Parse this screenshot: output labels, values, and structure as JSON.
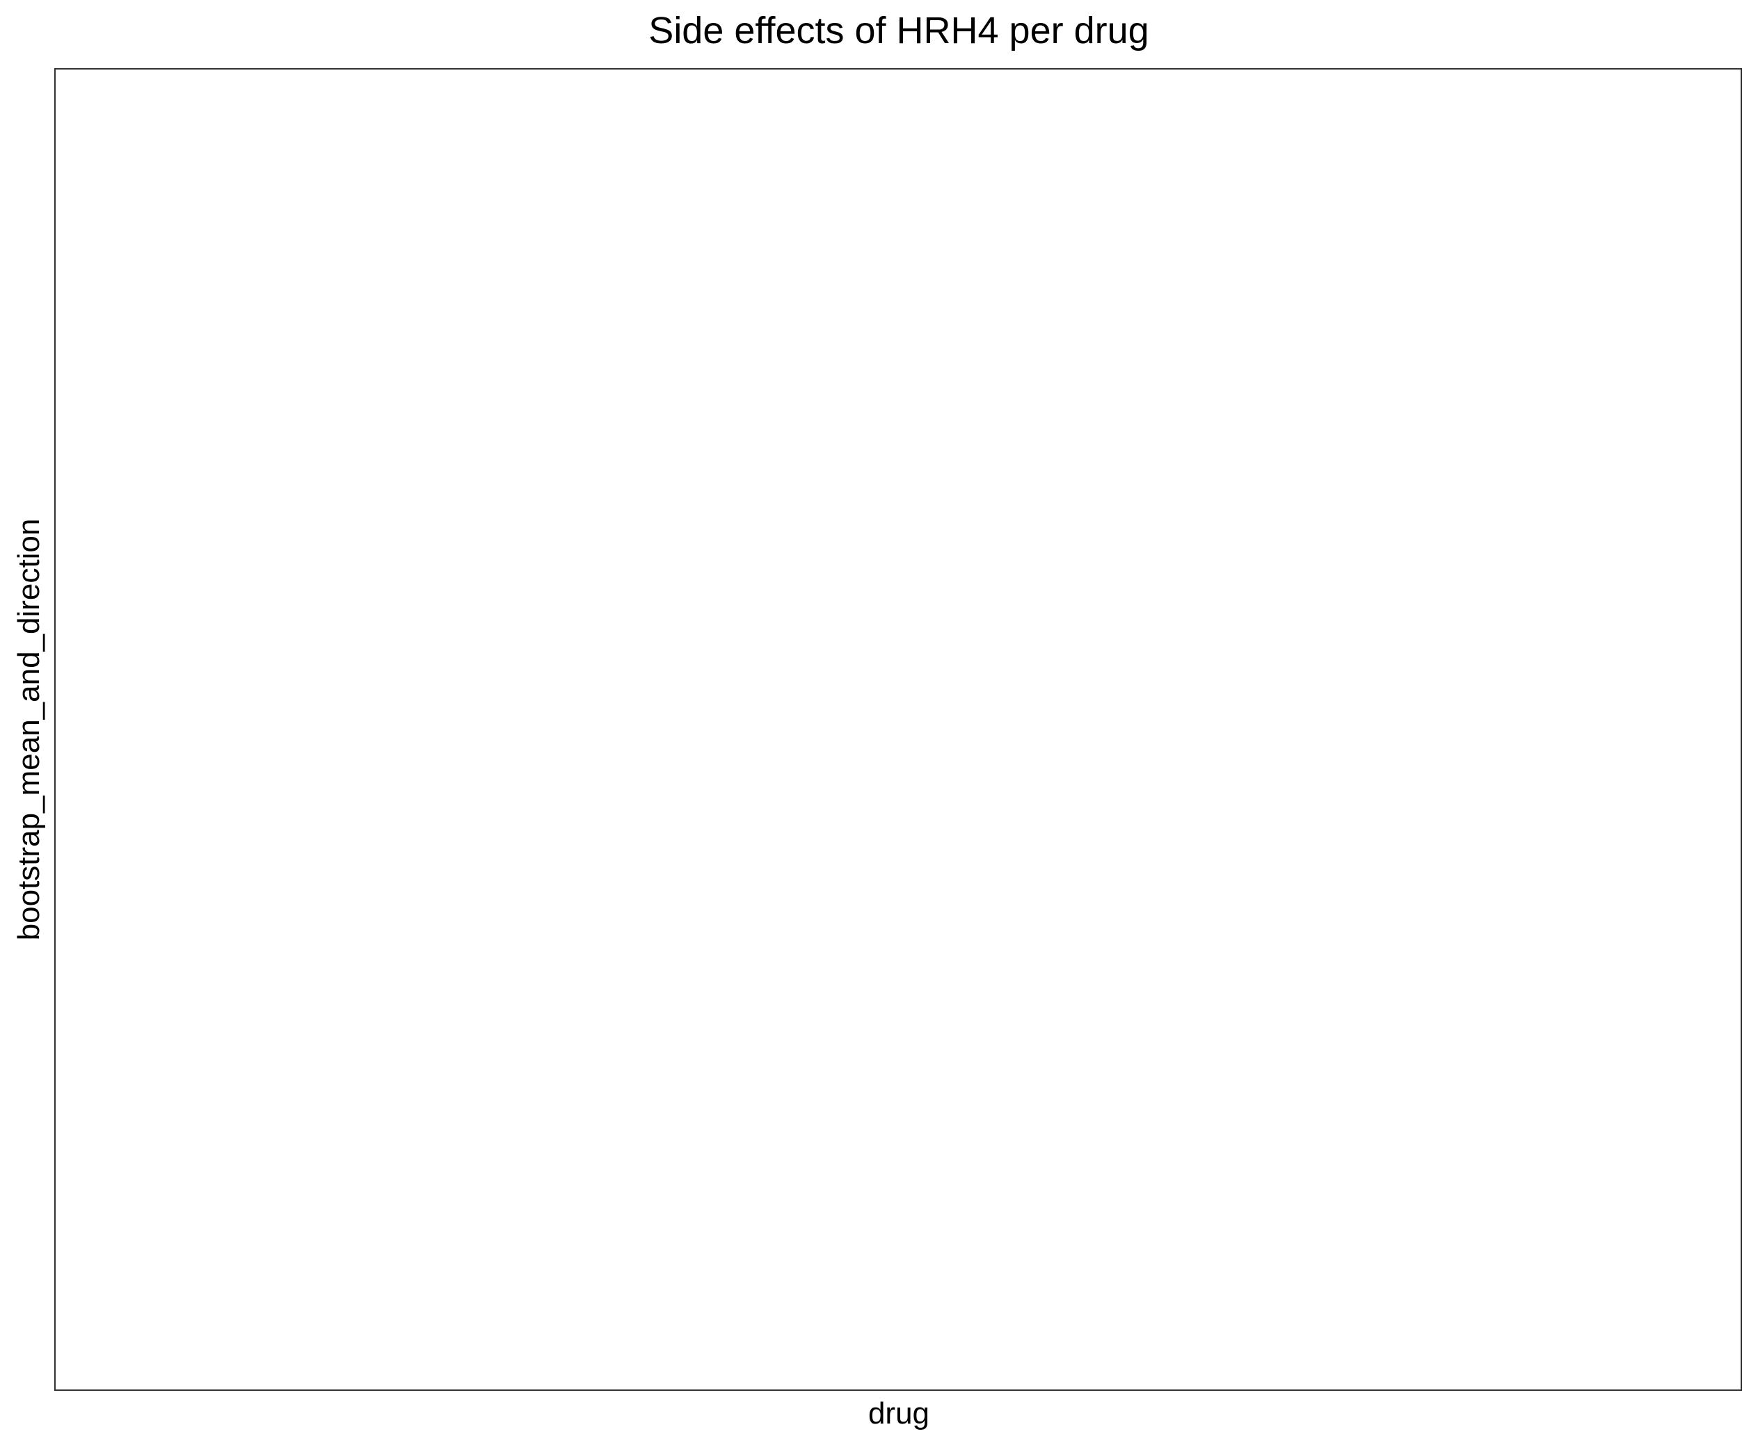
{
  "chart_data": {
    "type": "bar",
    "title": "Side effects of HRH4 per drug",
    "xlabel": "drug",
    "ylabel": "bootstrap_mean_and_direction",
    "categories": [],
    "values": [],
    "grid": false,
    "legend": "none",
    "colors": {
      "panel_border": "#333333",
      "text": "#000000",
      "background": "#ffffff"
    }
  }
}
